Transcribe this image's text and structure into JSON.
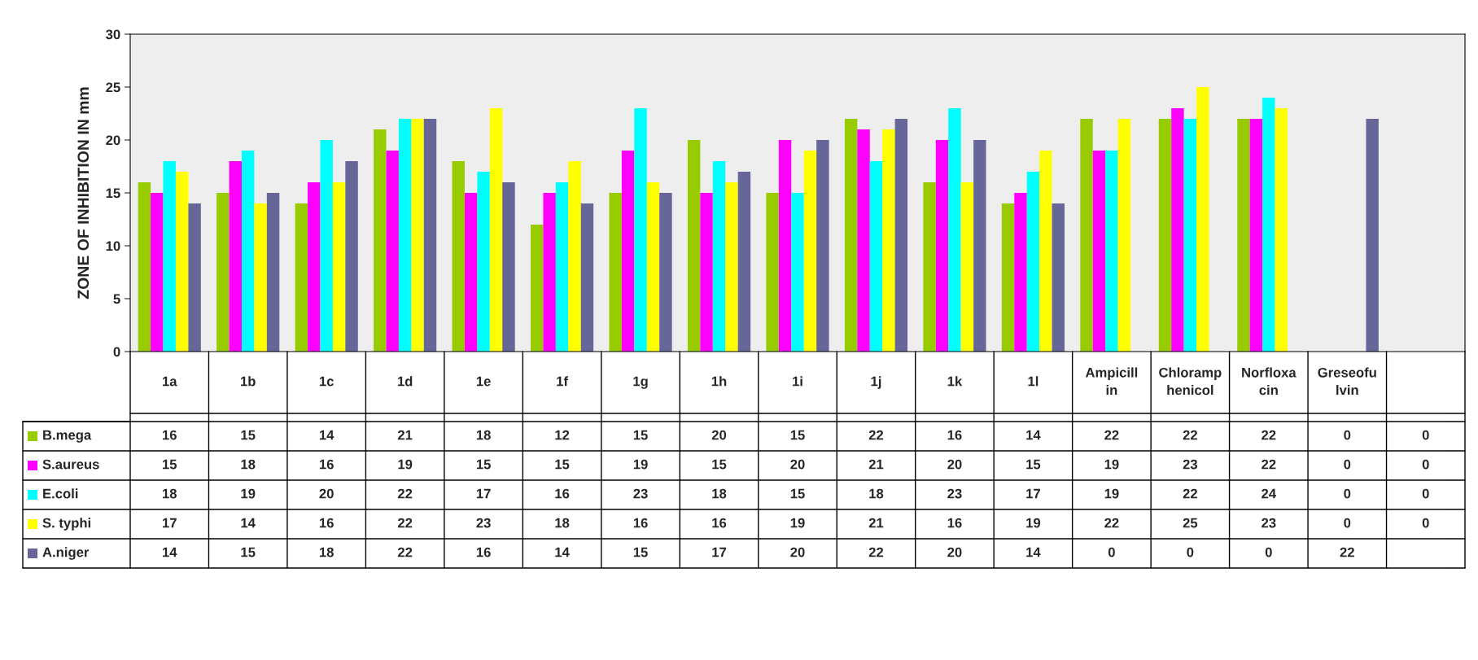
{
  "chart_data": {
    "type": "bar",
    "ylabel": "ZONE OF INHIBITION IN mm",
    "categories": [
      "1a",
      "1b",
      "1c",
      "1d",
      "1e",
      "1f",
      "1g",
      "1h",
      "1i",
      "1j",
      "1k",
      "1l",
      "Ampicillin",
      "Chloramphenicol",
      "Norfloxacin",
      "Greseofulvin",
      null
    ],
    "series": [
      {
        "name": "B.mega",
        "color": "#99cc00",
        "values": [
          16,
          15,
          14,
          21,
          18,
          12,
          15,
          20,
          15,
          22,
          16,
          14,
          22,
          22,
          22,
          0,
          0
        ]
      },
      {
        "name": "S.aureus",
        "color": "#ff00ff",
        "values": [
          15,
          18,
          16,
          19,
          15,
          15,
          19,
          15,
          20,
          21,
          20,
          15,
          19,
          23,
          22,
          0,
          0
        ]
      },
      {
        "name": "E.coli",
        "color": "#00ffff",
        "values": [
          18,
          19,
          20,
          22,
          17,
          16,
          23,
          18,
          15,
          18,
          23,
          17,
          19,
          22,
          24,
          0,
          0
        ]
      },
      {
        "name": "S. typhi",
        "color": "#ffff00",
        "values": [
          17,
          14,
          16,
          22,
          23,
          18,
          16,
          16,
          19,
          21,
          16,
          19,
          22,
          25,
          23,
          0,
          0
        ]
      },
      {
        "name": "A.niger",
        "color": "#666699",
        "values": [
          14,
          15,
          18,
          22,
          16,
          14,
          15,
          17,
          20,
          22,
          20,
          14,
          0,
          0,
          0,
          22,
          null
        ]
      }
    ],
    "ylim": [
      0,
      30
    ],
    "yticks": [
      0,
      5,
      10,
      15,
      20,
      25,
      30
    ],
    "grid": false,
    "legend": "bottom",
    "data_labels": true
  }
}
